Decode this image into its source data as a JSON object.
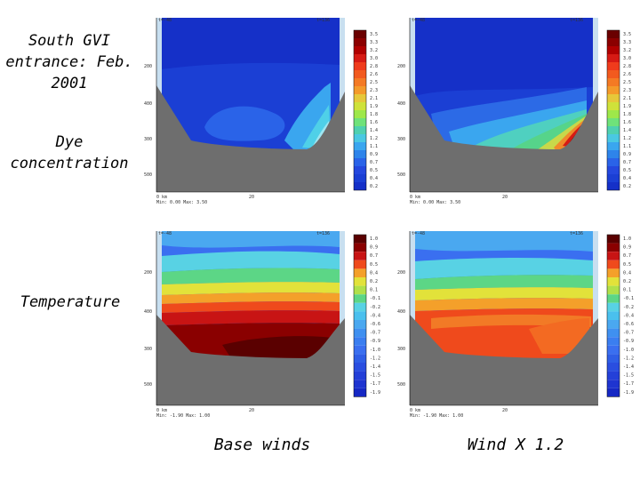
{
  "labels": {
    "title": "South GVI entrance: Feb. 2001",
    "dye": "Dye concentration",
    "temperature": "Temperature",
    "base_winds": "Base winds",
    "wind_x": "Wind X 1.2"
  },
  "panels": [
    {
      "id": "dye-base",
      "variable": "Dye concentration",
      "column": "Base winds",
      "colorbar_ticks": [
        "3.5",
        "3.3",
        "3.2",
        "3.0",
        "2.8",
        "2.6",
        "2.5",
        "2.3",
        "2.1",
        "1.9",
        "1.8",
        "1.6",
        "1.4",
        "1.2",
        "1.1",
        "0.9",
        "0.7",
        "0.5",
        "0.4",
        "0.2"
      ]
    },
    {
      "id": "dye-wind",
      "variable": "Dye concentration",
      "column": "Wind X 1.2",
      "colorbar_ticks": [
        "3.5",
        "3.3",
        "3.2",
        "3.0",
        "2.8",
        "2.6",
        "2.5",
        "2.3",
        "2.1",
        "1.9",
        "1.8",
        "1.6",
        "1.4",
        "1.2",
        "1.1",
        "0.9",
        "0.7",
        "0.5",
        "0.4",
        "0.2"
      ]
    },
    {
      "id": "temp-base",
      "variable": "Temperature",
      "column": "Base winds",
      "colorbar_ticks": [
        "1.0",
        "0.9",
        "0.7",
        "0.5",
        "0.4",
        "0.2",
        "0.1",
        "-0.1",
        "-0.2",
        "-0.4",
        "-0.6",
        "-0.7",
        "-0.9",
        "-1.0",
        "-1.2",
        "-1.4",
        "-1.5",
        "-1.7",
        "-1.9"
      ]
    },
    {
      "id": "temp-wind",
      "variable": "Temperature",
      "column": "Wind X 1.2",
      "colorbar_ticks": [
        "1.0",
        "0.9",
        "0.7",
        "0.5",
        "0.4",
        "0.2",
        "0.1",
        "-0.1",
        "-0.2",
        "-0.4",
        "-0.6",
        "-0.7",
        "-0.9",
        "-1.0",
        "-1.2",
        "-1.4",
        "-1.5",
        "-1.7",
        "-1.9"
      ]
    }
  ],
  "colors": {
    "bedrock": "#6e6e6e",
    "side_fill": "#c8dff0",
    "dye_low": "#1a3fd0",
    "dye_high": "#8b0000",
    "temp_cold": "#3a6ff0",
    "temp_hot": "#5a0000"
  }
}
